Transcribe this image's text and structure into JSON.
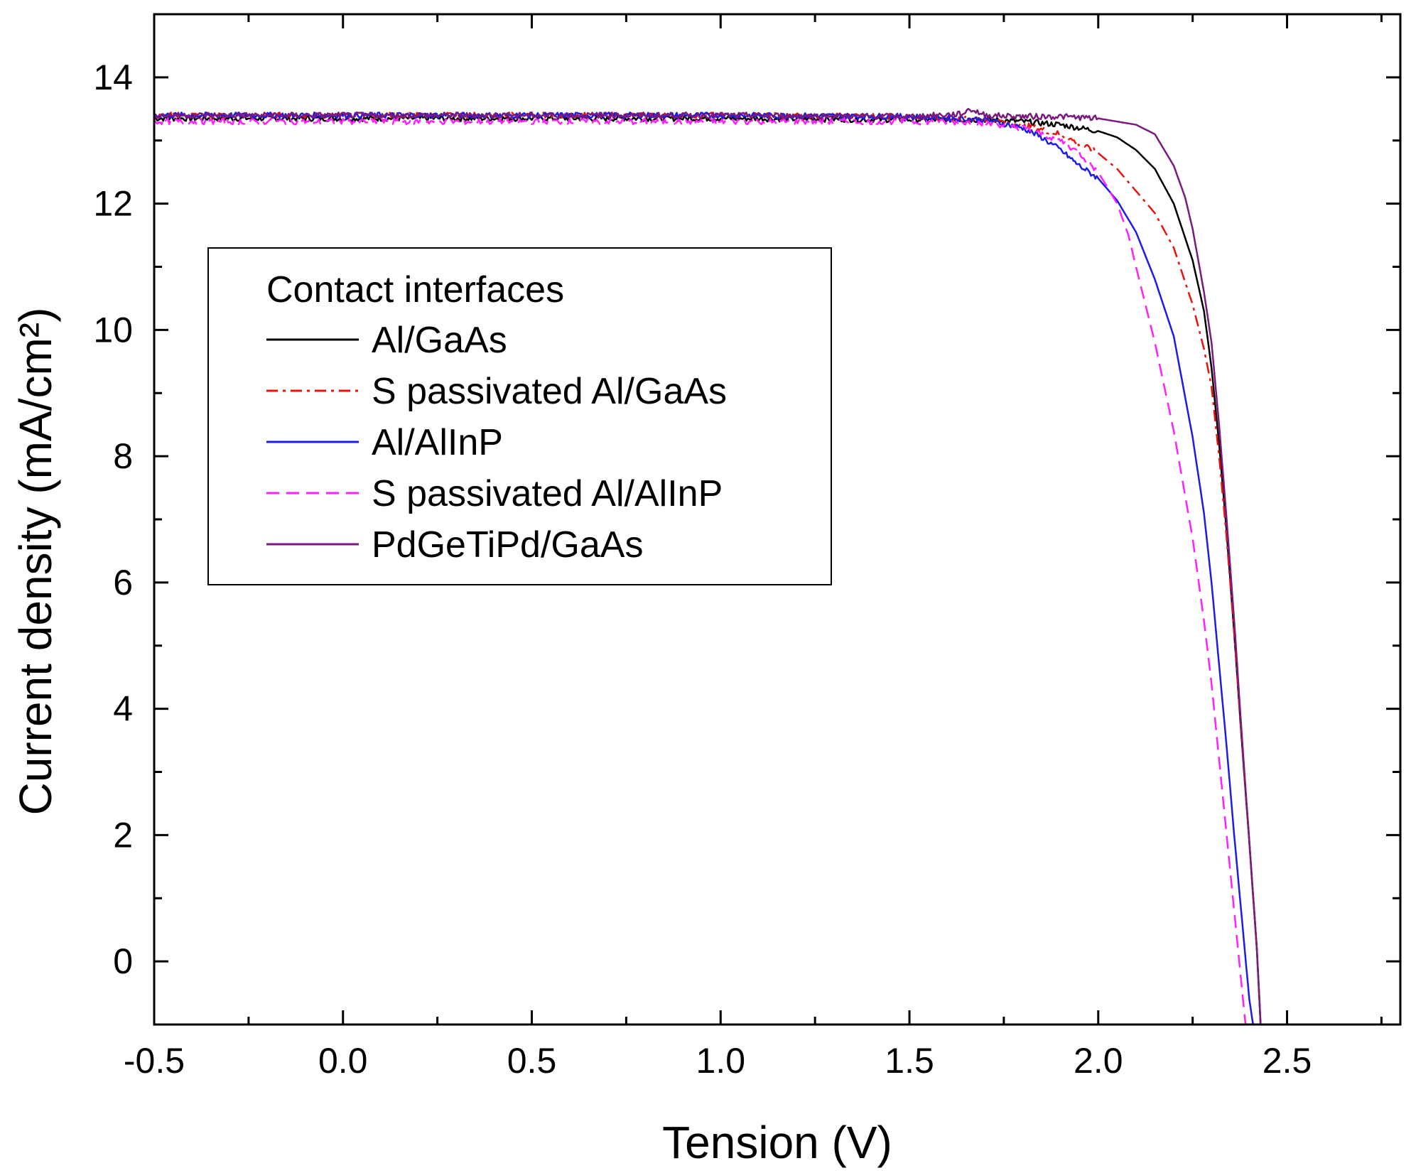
{
  "chart_data": {
    "type": "line",
    "title": "",
    "xlabel": "Tension (V)",
    "ylabel": "Current density (mA/cm²)",
    "xlim": [
      -0.5,
      2.8
    ],
    "ylim": [
      -1,
      15
    ],
    "x_ticks": [
      -0.5,
      0.0,
      0.5,
      1.0,
      1.5,
      2.0,
      2.5
    ],
    "x_tick_labels": [
      "-0.5",
      "0.0",
      "0.5",
      "1.0",
      "1.5",
      "2.0",
      "2.5"
    ],
    "y_ticks": [
      0,
      2,
      4,
      6,
      8,
      10,
      12,
      14
    ],
    "y_tick_labels": [
      "0",
      "2",
      "4",
      "6",
      "8",
      "10",
      "12",
      "14"
    ],
    "grid": false,
    "legend": {
      "title": "Contact interfaces",
      "placement": "upper-left"
    },
    "series": [
      {
        "name": "Al/GaAs",
        "color": "#000000",
        "dash": "solid",
        "x": [
          -0.5,
          0.0,
          0.5,
          1.0,
          1.5,
          1.7,
          1.8,
          1.9,
          2.0,
          2.05,
          2.1,
          2.15,
          2.2,
          2.25,
          2.28,
          2.3,
          2.32,
          2.34,
          2.36,
          2.38,
          2.4,
          2.42,
          2.43
        ],
        "values": [
          13.35,
          13.35,
          13.35,
          13.35,
          13.33,
          13.33,
          13.3,
          13.25,
          13.15,
          13.05,
          12.85,
          12.55,
          12.0,
          11.1,
          10.3,
          9.4,
          8.2,
          6.8,
          5.2,
          3.5,
          1.9,
          0.2,
          -1.0
        ]
      },
      {
        "name": "S passivated Al/GaAs",
        "color": "#e8130e",
        "dash": "dashdot",
        "x": [
          -0.5,
          0.0,
          0.5,
          1.0,
          1.5,
          1.7,
          1.8,
          1.9,
          2.0,
          2.05,
          2.1,
          2.15,
          2.2,
          2.25,
          2.28,
          2.3,
          2.32,
          2.34,
          2.36,
          2.38,
          2.4,
          2.42,
          2.43
        ],
        "values": [
          13.4,
          13.4,
          13.4,
          13.4,
          13.38,
          13.33,
          13.25,
          13.1,
          12.8,
          12.55,
          12.2,
          11.85,
          11.3,
          10.4,
          9.7,
          9.1,
          8.0,
          6.7,
          5.2,
          3.5,
          1.9,
          0.2,
          -1.0
        ]
      },
      {
        "name": "Al/AlInP",
        "color": "#1b1bea",
        "dash": "solid",
        "x": [
          -0.5,
          0.0,
          0.5,
          1.0,
          1.5,
          1.7,
          1.8,
          1.85,
          1.9,
          1.95,
          2.0,
          2.05,
          2.1,
          2.15,
          2.2,
          2.25,
          2.28,
          2.3,
          2.32,
          2.34,
          2.36,
          2.38,
          2.4,
          2.41
        ],
        "values": [
          13.4,
          13.4,
          13.4,
          13.4,
          13.38,
          13.33,
          13.2,
          13.05,
          12.85,
          12.6,
          12.4,
          12.05,
          11.55,
          10.8,
          9.9,
          8.3,
          7.1,
          6.0,
          4.7,
          3.4,
          2.0,
          0.7,
          -0.6,
          -1.0
        ]
      },
      {
        "name": "S passivated Al/AlInP",
        "color": "#ff1fff",
        "dash": "dashed",
        "x": [
          -0.5,
          0.0,
          0.5,
          1.0,
          1.5,
          1.7,
          1.8,
          1.9,
          1.95,
          2.0,
          2.05,
          2.08,
          2.1,
          2.15,
          2.2,
          2.25,
          2.28,
          2.3,
          2.32,
          2.34,
          2.36,
          2.38,
          2.39
        ],
        "values": [
          13.3,
          13.3,
          13.3,
          13.3,
          13.3,
          13.28,
          13.2,
          13.0,
          12.8,
          12.5,
          12.0,
          11.5,
          11.0,
          9.8,
          8.4,
          6.7,
          5.4,
          4.4,
          3.2,
          2.0,
          0.8,
          -0.4,
          -1.0
        ]
      },
      {
        "name": "PdGeTiPd/GaAs",
        "color": "#7a1a7e",
        "dash": "solid",
        "x": [
          -0.5,
          0.0,
          0.5,
          1.0,
          1.5,
          1.64,
          1.66,
          1.7,
          1.8,
          1.9,
          2.0,
          2.05,
          2.1,
          2.15,
          2.2,
          2.23,
          2.25,
          2.28,
          2.3,
          2.32,
          2.34,
          2.36,
          2.38,
          2.4,
          2.42,
          2.43
        ],
        "values": [
          13.4,
          13.4,
          13.4,
          13.4,
          13.38,
          13.42,
          13.5,
          13.4,
          13.38,
          13.38,
          13.35,
          13.3,
          13.25,
          13.1,
          12.6,
          12.1,
          11.6,
          10.6,
          9.8,
          8.5,
          7.0,
          5.4,
          3.6,
          1.9,
          0.2,
          -1.0
        ]
      }
    ]
  }
}
